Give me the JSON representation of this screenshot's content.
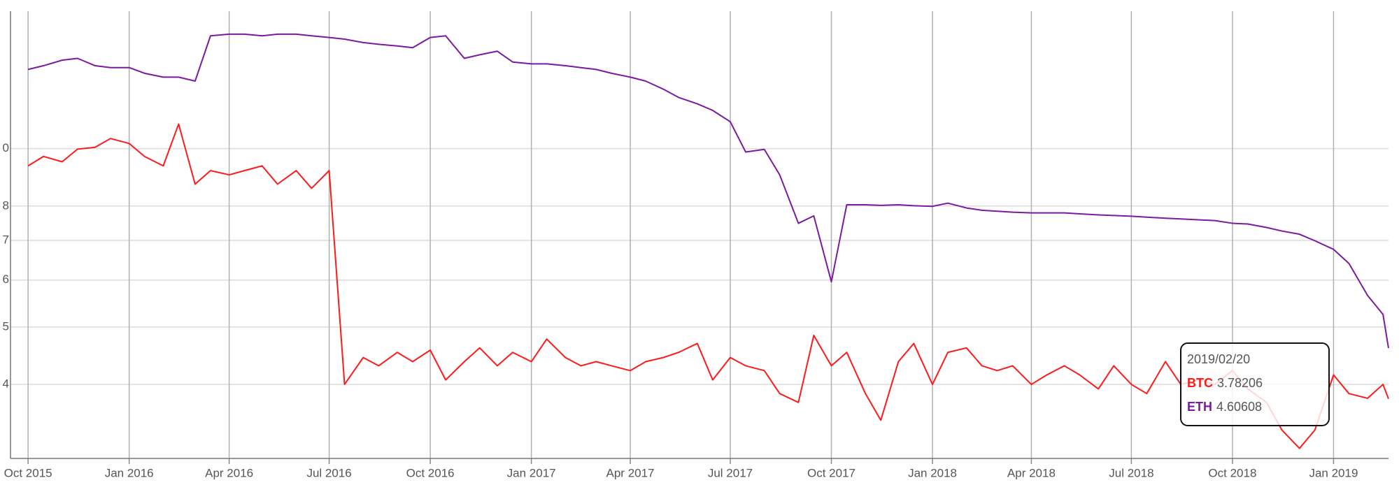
{
  "chart_data": {
    "type": "line",
    "yscale": "log",
    "grid": true,
    "x": [
      "2015/10/01",
      "2015/10/15",
      "2015/11/01",
      "2015/11/15",
      "2015/12/01",
      "2015/12/15",
      "2016/01/01",
      "2016/01/15",
      "2016/02/01",
      "2016/02/15",
      "2016/03/01",
      "2016/03/15",
      "2016/04/01",
      "2016/04/15",
      "2016/05/01",
      "2016/05/15",
      "2016/06/01",
      "2016/06/15",
      "2016/07/01",
      "2016/07/15",
      "2016/08/01",
      "2016/08/15",
      "2016/09/01",
      "2016/09/15",
      "2016/10/01",
      "2016/10/15",
      "2016/11/01",
      "2016/11/15",
      "2016/12/01",
      "2016/12/15",
      "2017/01/01",
      "2017/01/15",
      "2017/02/01",
      "2017/02/15",
      "2017/03/01",
      "2017/03/15",
      "2017/04/01",
      "2017/04/15",
      "2017/05/01",
      "2017/05/15",
      "2017/06/01",
      "2017/06/15",
      "2017/07/01",
      "2017/07/15",
      "2017/08/01",
      "2017/08/15",
      "2017/09/01",
      "2017/09/15",
      "2017/10/01",
      "2017/10/15",
      "2017/11/01",
      "2017/11/15",
      "2017/12/01",
      "2017/12/15",
      "2018/01/01",
      "2018/01/15",
      "2018/02/01",
      "2018/02/15",
      "2018/03/01",
      "2018/03/15",
      "2018/04/01",
      "2018/04/15",
      "2018/05/01",
      "2018/05/15",
      "2018/06/01",
      "2018/06/15",
      "2018/07/01",
      "2018/07/15",
      "2018/08/01",
      "2018/08/15",
      "2018/09/01",
      "2018/09/15",
      "2018/10/01",
      "2018/10/15",
      "2018/11/01",
      "2018/11/15",
      "2018/12/01",
      "2018/12/15",
      "2019/01/01",
      "2019/01/15",
      "2019/02/01",
      "2019/02/15",
      "2019/02/20"
    ],
    "series": [
      {
        "name": "BTC",
        "color": "#ff1a1a",
        "values": [
          9.35,
          9.7,
          9.5,
          9.98,
          10.05,
          10.4,
          10.2,
          9.7,
          9.35,
          11.0,
          8.71,
          9.18,
          9.03,
          9.18,
          9.35,
          8.71,
          9.18,
          8.57,
          9.18,
          4.0,
          4.44,
          4.3,
          4.53,
          4.37,
          4.57,
          4.07,
          4.37,
          4.61,
          4.3,
          4.53,
          4.37,
          4.77,
          4.44,
          4.3,
          4.37,
          4.3,
          4.22,
          4.37,
          4.44,
          4.53,
          4.69,
          4.07,
          4.44,
          4.3,
          4.22,
          3.86,
          3.73,
          4.84,
          4.3,
          4.53,
          3.86,
          3.48,
          4.37,
          4.69,
          4.0,
          4.53,
          4.61,
          4.3,
          4.22,
          4.3,
          4.0,
          4.15,
          4.3,
          4.15,
          3.93,
          4.3,
          4.0,
          3.86,
          4.37,
          4.0,
          4.07,
          4.0,
          4.22,
          3.93,
          3.73,
          3.35,
          3.12,
          3.35,
          4.15,
          3.86,
          3.79,
          4.0,
          3.78206
        ]
      },
      {
        "name": "ETH",
        "color": "#7b1a9e",
        "values": [
          13.6,
          13.8,
          14.1,
          14.2,
          13.8,
          13.7,
          13.7,
          13.4,
          13.2,
          13.2,
          13.0,
          15.5,
          15.6,
          15.6,
          15.5,
          15.6,
          15.6,
          15.5,
          15.4,
          15.3,
          15.1,
          15.0,
          14.9,
          14.8,
          15.4,
          15.5,
          14.2,
          14.4,
          14.6,
          14.0,
          13.9,
          13.9,
          13.8,
          13.7,
          13.6,
          13.4,
          13.2,
          13.0,
          12.6,
          12.2,
          11.9,
          11.6,
          11.1,
          9.87,
          9.97,
          9.03,
          7.48,
          7.7,
          5.96,
          8.04,
          8.04,
          8.02,
          8.04,
          8.01,
          7.99,
          8.09,
          7.94,
          7.87,
          7.84,
          7.81,
          7.79,
          7.79,
          7.79,
          7.76,
          7.73,
          7.71,
          7.69,
          7.66,
          7.63,
          7.61,
          7.58,
          7.56,
          7.48,
          7.46,
          7.36,
          7.26,
          7.17,
          6.99,
          6.76,
          6.4,
          5.65,
          5.25,
          4.60608
        ]
      }
    ],
    "xlim": [
      "2015/09/15",
      "2019/02/20"
    ],
    "xticks": [
      {
        "value": "2015/10/01",
        "label": "Oct 2015"
      },
      {
        "value": "2016/01/01",
        "label": "Jan 2016"
      },
      {
        "value": "2016/04/01",
        "label": "Apr 2016"
      },
      {
        "value": "2016/07/01",
        "label": "Jul 2016"
      },
      {
        "value": "2016/10/01",
        "label": "Oct 2016"
      },
      {
        "value": "2017/01/01",
        "label": "Jan 2017"
      },
      {
        "value": "2017/04/01",
        "label": "Apr 2017"
      },
      {
        "value": "2017/07/01",
        "label": "Jul 2017"
      },
      {
        "value": "2017/10/01",
        "label": "Oct 2017"
      },
      {
        "value": "2018/01/01",
        "label": "Jan 2018"
      },
      {
        "value": "2018/04/01",
        "label": "Apr 2018"
      },
      {
        "value": "2018/07/01",
        "label": "Jul 2018"
      },
      {
        "value": "2018/10/01",
        "label": "Oct 2018"
      },
      {
        "value": "2019/01/01",
        "label": "Jan 2019"
      }
    ],
    "ylim": [
      3,
      16.6
    ],
    "yticks": [
      4,
      5,
      6,
      7,
      8,
      {
        "value": 10,
        "label": "0"
      }
    ]
  }
}
